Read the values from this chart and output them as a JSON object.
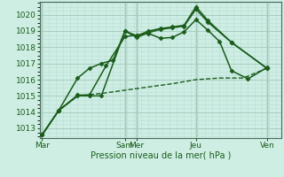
{
  "background_color": "#ceeee4",
  "grid_color_major": "#a8ccc0",
  "grid_color_minor": "#b8ddd4",
  "line_color": "#1a5c1a",
  "title": "Pression niveau de la mer( hPa )",
  "ylim": [
    1012.4,
    1020.8
  ],
  "yticks": [
    1013,
    1014,
    1015,
    1016,
    1017,
    1018,
    1019,
    1020
  ],
  "xlim": [
    -0.1,
    10.1
  ],
  "xtick_labels": [
    "Mar",
    "Sam",
    "Mer",
    "Jeu",
    "Ven"
  ],
  "xtick_positions": [
    0,
    3.5,
    4.0,
    6.5,
    9.5
  ],
  "vline_positions": [
    0,
    3.5,
    4.0,
    6.5,
    9.5
  ],
  "series": [
    {
      "x": [
        0.0,
        0.7,
        1.5,
        2.0,
        2.5,
        3.5,
        4.0,
        4.5,
        5.0,
        5.5,
        6.0,
        6.5,
        7.0,
        8.0,
        9.5
      ],
      "y": [
        1012.6,
        1014.1,
        1015.0,
        1015.0,
        1015.0,
        1019.0,
        1018.7,
        1019.0,
        1019.15,
        1019.25,
        1019.35,
        1020.5,
        1019.65,
        1018.3,
        1016.7
      ],
      "marker": "D",
      "ms": 2.5,
      "lw": 1.1,
      "linestyle": "-"
    },
    {
      "x": [
        0.0,
        0.7,
        1.5,
        2.0,
        2.5,
        3.0,
        3.5,
        4.0,
        4.5,
        5.0,
        5.5,
        6.0,
        6.5,
        7.0,
        8.0,
        9.5
      ],
      "y": [
        1012.6,
        1014.1,
        1016.1,
        1016.7,
        1017.0,
        1017.2,
        1019.0,
        1018.6,
        1018.9,
        1019.1,
        1019.2,
        1019.3,
        1020.35,
        1019.55,
        1018.3,
        1016.7
      ],
      "marker": "D",
      "ms": 2.5,
      "lw": 1.1,
      "linestyle": "-"
    },
    {
      "x": [
        0.0,
        0.7,
        1.5,
        2.0,
        2.7,
        3.5,
        4.0,
        4.5,
        5.0,
        5.5,
        6.0,
        6.5,
        7.0,
        7.5,
        8.0,
        8.7,
        9.5
      ],
      "y": [
        1012.6,
        1014.1,
        1015.05,
        1015.05,
        1016.85,
        1018.65,
        1018.75,
        1018.85,
        1018.55,
        1018.6,
        1018.95,
        1019.7,
        1019.05,
        1018.35,
        1016.55,
        1016.05,
        1016.75
      ],
      "marker": "D",
      "ms": 2.5,
      "lw": 1.1,
      "linestyle": "-"
    },
    {
      "x": [
        0.0,
        0.7,
        1.5,
        2.5,
        3.5,
        4.5,
        5.5,
        6.5,
        7.5,
        8.5,
        9.5
      ],
      "y": [
        1012.6,
        1014.1,
        1015.0,
        1015.15,
        1015.35,
        1015.55,
        1015.75,
        1016.0,
        1016.1,
        1016.1,
        1016.7
      ],
      "marker": null,
      "ms": 0,
      "lw": 1.0,
      "linestyle": "--"
    }
  ]
}
